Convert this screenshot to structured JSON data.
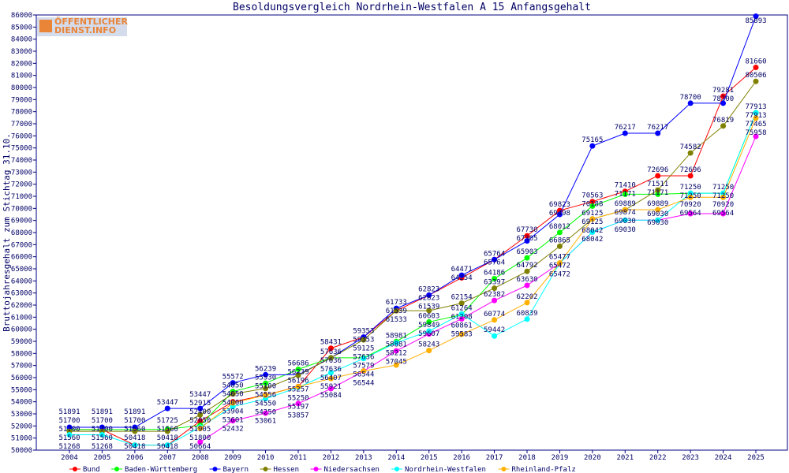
{
  "logo_text": [
    "ÖFFENTLICHER",
    "DIENST.INFO"
  ],
  "chart_data": {
    "type": "line",
    "title": "Besoldungsvergleich Nordrhein-Westfalen A 15 Anfangsgehalt",
    "xlabel": "",
    "ylabel": "Bruttojahresgehalt zum Stichtag 31.10.",
    "ylim": [
      50000,
      86000
    ],
    "ytick_step": 1000,
    "grid": false,
    "legend": "bottom",
    "x": [
      2004,
      2005,
      2006,
      2007,
      2008,
      2009,
      2010,
      2011,
      2012,
      2013,
      2014,
      2015,
      2016,
      2017,
      2018,
      2019,
      2020,
      2021,
      2022,
      2023,
      2024,
      2025
    ],
    "series": [
      {
        "name": "Bund",
        "color": "#ff0000",
        "values": [
          51700,
          51700,
          50418,
          50418,
          52400,
          54000,
          54556,
          55257,
          58431,
          59353,
          61533,
          62823,
          64254,
          65764,
          67730,
          69823,
          70563,
          71410,
          72696,
          72696,
          79281,
          81660
        ]
      },
      {
        "name": "Baden-Württemberg",
        "color": "#00ff00",
        "values": [
          51700,
          51700,
          51700,
          51725,
          52050,
          54850,
          55530,
          56686,
          57636,
          57636,
          58981,
          60603,
          61208,
          64186,
          65903,
          68012,
          70188,
          71171,
          71171,
          71250,
          71250,
          77913
        ]
      },
      {
        "name": "Bayern",
        "color": "#0000ff",
        "values": [
          51891,
          51891,
          51891,
          53447,
          53447,
          55572,
          56239,
          56239,
          57636,
          59353,
          61733,
          62823,
          64471,
          65764,
          67305,
          69498,
          75165,
          76217,
          76217,
          78700,
          78700,
          85893
        ]
      },
      {
        "name": "Hessen",
        "color": "#808000",
        "values": [
          51560,
          51560,
          51560,
          51560,
          52915,
          54650,
          55100,
          56196,
          57636,
          59125,
          61539,
          61539,
          62154,
          63397,
          64792,
          66865,
          69125,
          69874,
          71511,
          74582,
          76819,
          80506
        ]
      },
      {
        "name": "Niedersachsen",
        "color": "#ff00ff",
        "values": [
          null,
          null,
          null,
          null,
          50664,
          52432,
          53061,
          53857,
          55084,
          56544,
          58212,
          59607,
          60861,
          62382,
          63630,
          65472,
          68042,
          69030,
          69030,
          69564,
          69564,
          75958
        ]
      },
      {
        "name": "Nordrhein-Westfalen",
        "color": "#00ffff",
        "values": [
          51268,
          51268,
          50418,
          50418,
          51905,
          53601,
          54250,
          55197,
          56407,
          57579,
          58881,
          59849,
          61264,
          59442,
          60839,
          65472,
          68042,
          69030,
          69030,
          71250,
          71250,
          77913
        ]
      },
      {
        "name": "Rheinland-Pfalz",
        "color": "#ffb000",
        "values": [
          null,
          null,
          null,
          null,
          51800,
          53904,
          54550,
          55250,
          55921,
          56544,
          57045,
          58243,
          59583,
          60774,
          62202,
          65477,
          69125,
          69889,
          69889,
          70920,
          70920,
          77465
        ]
      }
    ]
  }
}
